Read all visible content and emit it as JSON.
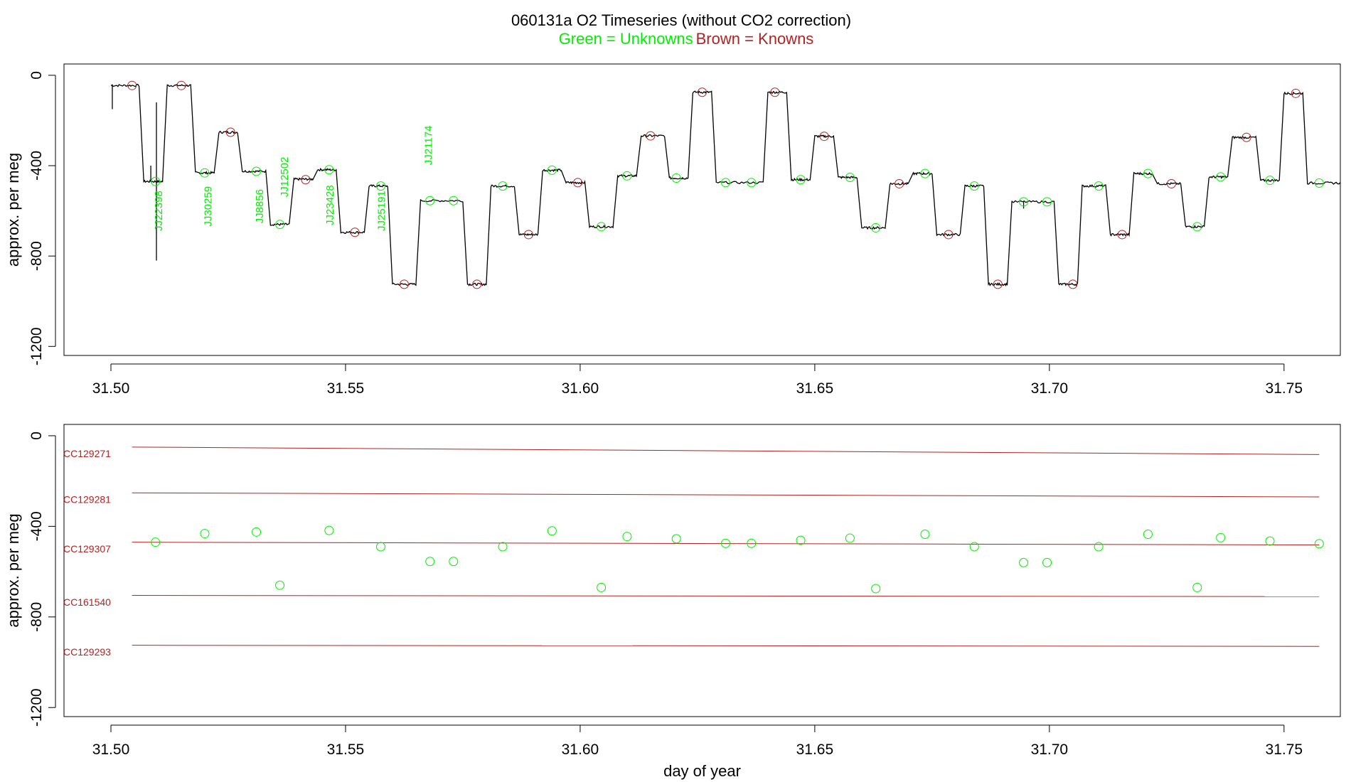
{
  "chart_data": [
    {
      "type": "line",
      "title": "060131a   O2 Timeseries (without CO2 correction)",
      "subtitle": {
        "green": "Green = Unknowns",
        "brown": "Brown = Knowns"
      },
      "xlabel": "",
      "ylabel": "approx. per meg",
      "xlim": [
        31.49,
        31.762
      ],
      "ylim": [
        -1240,
        50
      ],
      "xticks": [
        31.5,
        31.55,
        31.6,
        31.65,
        31.7,
        31.75
      ],
      "xtick_labels": [
        "31.50",
        "31.55",
        "31.60",
        "31.65",
        "31.70",
        "31.75"
      ],
      "yticks": [
        0,
        -400,
        -800,
        -1200
      ],
      "ytick_labels": [
        "0",
        "-400",
        "-800",
        "-1200"
      ],
      "colors": {
        "unknown": "#00ee00",
        "known": "#b22222",
        "trace": "#000000"
      },
      "trace_segments": [
        {
          "x0": 31.5,
          "x1": 31.506,
          "y": -45
        },
        {
          "x0": 31.507,
          "x1": 31.511,
          "y": -470
        },
        {
          "x0": 31.512,
          "x1": 31.517,
          "y": -45
        },
        {
          "x0": 31.518,
          "x1": 31.522,
          "y": -432
        },
        {
          "x0": 31.523,
          "x1": 31.527,
          "y": -252
        },
        {
          "x0": 31.528,
          "x1": 31.533,
          "y": -425
        },
        {
          "x0": 31.534,
          "x1": 31.538,
          "y": -660
        },
        {
          "x0": 31.539,
          "x1": 31.543,
          "y": -460
        },
        {
          "x0": 31.544,
          "x1": 31.548,
          "y": -418
        },
        {
          "x0": 31.549,
          "x1": 31.554,
          "y": -695
        },
        {
          "x0": 31.555,
          "x1": 31.559,
          "y": -490
        },
        {
          "x0": 31.56,
          "x1": 31.565,
          "y": -925
        },
        {
          "x0": 31.566,
          "x1": 31.575,
          "y": -555
        },
        {
          "x0": 31.576,
          "x1": 31.58,
          "y": -925
        },
        {
          "x0": 31.581,
          "x1": 31.586,
          "y": -490
        },
        {
          "x0": 31.587,
          "x1": 31.591,
          "y": -705
        },
        {
          "x0": 31.592,
          "x1": 31.596,
          "y": -420
        },
        {
          "x0": 31.597,
          "x1": 31.601,
          "y": -475
        },
        {
          "x0": 31.602,
          "x1": 31.607,
          "y": -670
        },
        {
          "x0": 31.608,
          "x1": 31.612,
          "y": -445
        },
        {
          "x0": 31.613,
          "x1": 31.618,
          "y": -268
        },
        {
          "x0": 31.619,
          "x1": 31.623,
          "y": -455
        },
        {
          "x0": 31.624,
          "x1": 31.628,
          "y": -75
        },
        {
          "x0": 31.629,
          "x1": 31.639,
          "y": -475
        },
        {
          "x0": 31.64,
          "x1": 31.644,
          "y": -75
        },
        {
          "x0": 31.645,
          "x1": 31.649,
          "y": -462
        },
        {
          "x0": 31.65,
          "x1": 31.654,
          "y": -270
        },
        {
          "x0": 31.655,
          "x1": 31.659,
          "y": -452
        },
        {
          "x0": 31.66,
          "x1": 31.665,
          "y": -675
        },
        {
          "x0": 31.666,
          "x1": 31.67,
          "y": -480
        },
        {
          "x0": 31.671,
          "x1": 31.675,
          "y": -435
        },
        {
          "x0": 31.676,
          "x1": 31.681,
          "y": -705
        },
        {
          "x0": 31.682,
          "x1": 31.686,
          "y": -490
        },
        {
          "x0": 31.687,
          "x1": 31.691,
          "y": -925
        },
        {
          "x0": 31.692,
          "x1": 31.701,
          "y": -560
        },
        {
          "x0": 31.702,
          "x1": 31.706,
          "y": -925
        },
        {
          "x0": 31.707,
          "x1": 31.712,
          "y": -490
        },
        {
          "x0": 31.713,
          "x1": 31.717,
          "y": -705
        },
        {
          "x0": 31.718,
          "x1": 31.722,
          "y": -435
        },
        {
          "x0": 31.723,
          "x1": 31.728,
          "y": -480
        },
        {
          "x0": 31.729,
          "x1": 31.733,
          "y": -670
        },
        {
          "x0": 31.734,
          "x1": 31.738,
          "y": -450
        },
        {
          "x0": 31.739,
          "x1": 31.744,
          "y": -275
        },
        {
          "x0": 31.745,
          "x1": 31.749,
          "y": -465
        },
        {
          "x0": 31.75,
          "x1": 31.754,
          "y": -80
        },
        {
          "x0": 31.755,
          "x1": 31.762,
          "y": -477
        }
      ],
      "spikes": [
        {
          "x": 31.5003,
          "y0": -40,
          "y1": -150
        },
        {
          "x": 31.5085,
          "y0": -470,
          "y1": -400
        },
        {
          "x": 31.5097,
          "y0": -120,
          "y1": -820
        },
        {
          "x": 31.6945,
          "y0": -560,
          "y1": -590
        }
      ],
      "known_markers": [
        {
          "x": 31.5045,
          "y": -45
        },
        {
          "x": 31.515,
          "y": -45
        },
        {
          "x": 31.5255,
          "y": -252
        },
        {
          "x": 31.5415,
          "y": -462
        },
        {
          "x": 31.552,
          "y": -695
        },
        {
          "x": 31.5625,
          "y": -925
        },
        {
          "x": 31.578,
          "y": -925
        },
        {
          "x": 31.589,
          "y": -705
        },
        {
          "x": 31.5995,
          "y": -475
        },
        {
          "x": 31.615,
          "y": -268
        },
        {
          "x": 31.626,
          "y": -75
        },
        {
          "x": 31.6415,
          "y": -75
        },
        {
          "x": 31.652,
          "y": -270
        },
        {
          "x": 31.668,
          "y": -480
        },
        {
          "x": 31.6785,
          "y": -705
        },
        {
          "x": 31.689,
          "y": -925
        },
        {
          "x": 31.705,
          "y": -925
        },
        {
          "x": 31.7155,
          "y": -705
        },
        {
          "x": 31.726,
          "y": -480
        },
        {
          "x": 31.742,
          "y": -275
        },
        {
          "x": 31.7525,
          "y": -80
        }
      ],
      "unknown_markers": [
        {
          "x": 31.5095,
          "y": -470
        },
        {
          "x": 31.52,
          "y": -432
        },
        {
          "x": 31.531,
          "y": -425
        },
        {
          "x": 31.536,
          "y": -660
        },
        {
          "x": 31.5465,
          "y": -418
        },
        {
          "x": 31.5575,
          "y": -490
        },
        {
          "x": 31.568,
          "y": -555
        },
        {
          "x": 31.573,
          "y": -555
        },
        {
          "x": 31.5835,
          "y": -490
        },
        {
          "x": 31.594,
          "y": -420
        },
        {
          "x": 31.6045,
          "y": -670
        },
        {
          "x": 31.61,
          "y": -445
        },
        {
          "x": 31.6205,
          "y": -455
        },
        {
          "x": 31.631,
          "y": -475
        },
        {
          "x": 31.6365,
          "y": -475
        },
        {
          "x": 31.647,
          "y": -462
        },
        {
          "x": 31.6575,
          "y": -452
        },
        {
          "x": 31.663,
          "y": -675
        },
        {
          "x": 31.6735,
          "y": -435
        },
        {
          "x": 31.684,
          "y": -490
        },
        {
          "x": 31.6945,
          "y": -560
        },
        {
          "x": 31.6995,
          "y": -560
        },
        {
          "x": 31.7105,
          "y": -490
        },
        {
          "x": 31.721,
          "y": -435
        },
        {
          "x": 31.7315,
          "y": -670
        },
        {
          "x": 31.7365,
          "y": -450
        },
        {
          "x": 31.747,
          "y": -465
        },
        {
          "x": 31.7575,
          "y": -477
        }
      ],
      "sample_labels": [
        {
          "text": "JJ22398",
          "x": 31.51,
          "y": -600
        },
        {
          "text": "JJ30259",
          "x": 31.5205,
          "y": -580
        },
        {
          "text": "JJ8856",
          "x": 31.5315,
          "y": -580
        },
        {
          "text": "JJ12502",
          "x": 31.5368,
          "y": -450
        },
        {
          "text": "JJ23428",
          "x": 31.5465,
          "y": -575
        },
        {
          "text": "JJ25191",
          "x": 31.5575,
          "y": -600
        },
        {
          "text": "JJ21174",
          "x": 31.5675,
          "y": -310
        }
      ]
    },
    {
      "type": "scatter",
      "xlabel": "day of year",
      "ylabel": "approx. per meg",
      "xlim": [
        31.49,
        31.762
      ],
      "ylim": [
        -1240,
        50
      ],
      "xticks": [
        31.5,
        31.55,
        31.6,
        31.65,
        31.7,
        31.75
      ],
      "xtick_labels": [
        "31.50",
        "31.55",
        "31.60",
        "31.65",
        "31.70",
        "31.75"
      ],
      "yticks": [
        0,
        -400,
        -800,
        -1200
      ],
      "ytick_labels": [
        "0",
        "-400",
        "-800",
        "-1200"
      ],
      "reference_lines": [
        {
          "name": "CC129271",
          "x0": 31.5045,
          "y0": -50,
          "x1": 31.7575,
          "y1": -83
        },
        {
          "name": "CC129281",
          "x0": 31.5045,
          "y0": -252,
          "x1": 31.7575,
          "y1": -270
        },
        {
          "name": "CC129307",
          "x0": 31.5045,
          "y0": -470,
          "x1": 31.7575,
          "y1": -482
        },
        {
          "name": "CC161540",
          "x0": 31.5045,
          "y0": -705,
          "x1": 31.7575,
          "y1": -710
        },
        {
          "name": "CC129293",
          "x0": 31.5045,
          "y0": -925,
          "x1": 31.7575,
          "y1": -930
        }
      ],
      "unknown_points": [
        {
          "x": 31.5095,
          "y": -470
        },
        {
          "x": 31.52,
          "y": -432
        },
        {
          "x": 31.531,
          "y": -425
        },
        {
          "x": 31.536,
          "y": -660
        },
        {
          "x": 31.5465,
          "y": -418
        },
        {
          "x": 31.5575,
          "y": -490
        },
        {
          "x": 31.568,
          "y": -555
        },
        {
          "x": 31.573,
          "y": -555
        },
        {
          "x": 31.5835,
          "y": -490
        },
        {
          "x": 31.594,
          "y": -420
        },
        {
          "x": 31.6045,
          "y": -670
        },
        {
          "x": 31.61,
          "y": -445
        },
        {
          "x": 31.6205,
          "y": -455
        },
        {
          "x": 31.631,
          "y": -475
        },
        {
          "x": 31.6365,
          "y": -475
        },
        {
          "x": 31.647,
          "y": -462
        },
        {
          "x": 31.6575,
          "y": -452
        },
        {
          "x": 31.663,
          "y": -675
        },
        {
          "x": 31.6735,
          "y": -435
        },
        {
          "x": 31.684,
          "y": -490
        },
        {
          "x": 31.6945,
          "y": -560
        },
        {
          "x": 31.6995,
          "y": -560
        },
        {
          "x": 31.7105,
          "y": -490
        },
        {
          "x": 31.721,
          "y": -435
        },
        {
          "x": 31.7315,
          "y": -670
        },
        {
          "x": 31.7365,
          "y": -450
        },
        {
          "x": 31.747,
          "y": -465
        },
        {
          "x": 31.7575,
          "y": -477
        }
      ]
    }
  ]
}
